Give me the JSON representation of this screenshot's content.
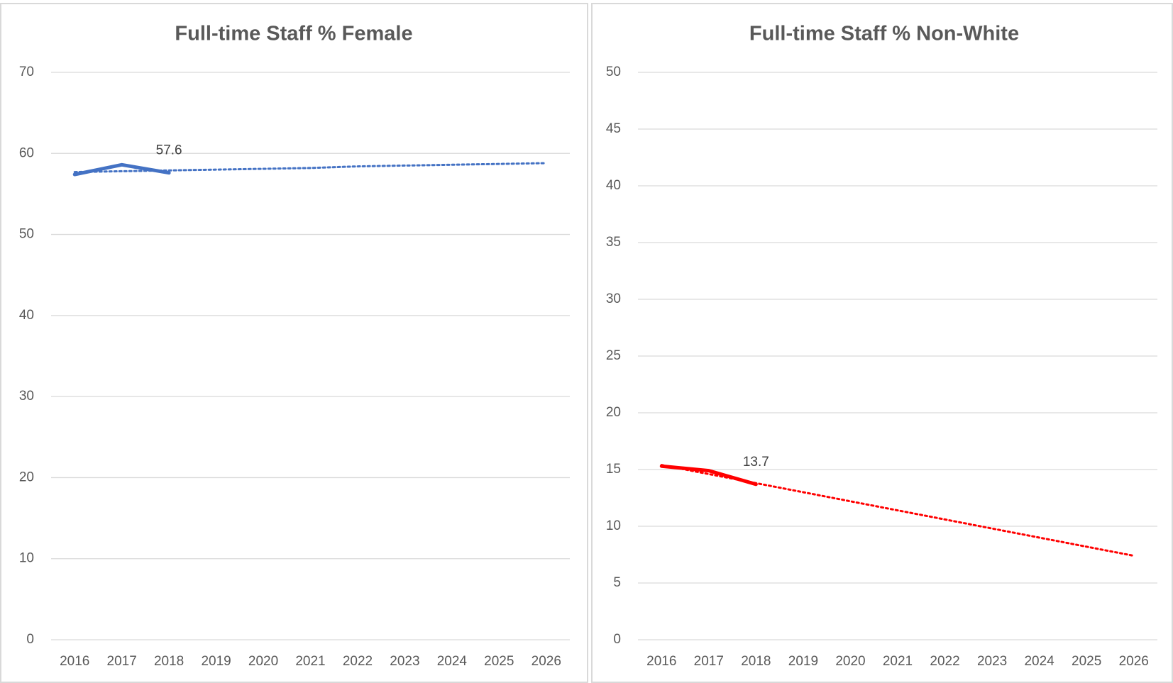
{
  "chart_data": [
    {
      "type": "line",
      "title": "Full-time Staff % Female",
      "categories": [
        "2016",
        "2017",
        "2018",
        "2019",
        "2020",
        "2021",
        "2022",
        "2023",
        "2024",
        "2025",
        "2026"
      ],
      "series": [
        {
          "color": "#4472c4",
          "dash": "solid",
          "values": [
            57.4,
            58.6,
            57.6,
            null,
            null,
            null,
            null,
            null,
            null,
            null,
            null
          ],
          "show_label": [
            false,
            false,
            true,
            false,
            false,
            false,
            false,
            false,
            false,
            false,
            false
          ]
        },
        {
          "color": "#4472c4",
          "dash": "dotted",
          "values": [
            57.7,
            57.8,
            57.9,
            58.0,
            58.1,
            58.2,
            58.4,
            58.5,
            58.6,
            58.7,
            58.8
          ]
        }
      ],
      "ylim": [
        0,
        70
      ],
      "yticks": [
        0,
        10,
        20,
        30,
        40,
        50,
        60,
        70
      ],
      "grid": true
    },
    {
      "type": "line",
      "title": "Full-time Staff % Non-White",
      "categories": [
        "2016",
        "2017",
        "2018",
        "2019",
        "2020",
        "2021",
        "2022",
        "2023",
        "2024",
        "2025",
        "2026"
      ],
      "series": [
        {
          "color": "#ff0000",
          "dash": "solid",
          "values": [
            15.3,
            14.9,
            13.7,
            null,
            null,
            null,
            null,
            null,
            null,
            null,
            null
          ],
          "show_label": [
            false,
            false,
            true,
            false,
            false,
            false,
            false,
            false,
            false,
            false,
            false
          ]
        },
        {
          "color": "#ff0000",
          "dash": "dotted",
          "values": [
            15.4,
            14.6,
            13.8,
            13.0,
            12.2,
            11.4,
            10.6,
            9.8,
            9.0,
            8.2,
            7.4
          ]
        }
      ],
      "ylim": [
        0,
        50
      ],
      "yticks": [
        0,
        5,
        10,
        15,
        20,
        25,
        30,
        35,
        40,
        45,
        50
      ],
      "grid": true
    }
  ]
}
